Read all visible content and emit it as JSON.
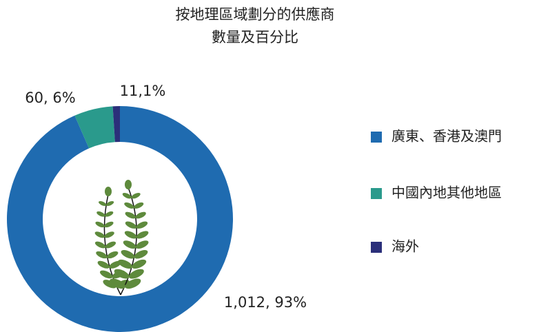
{
  "chart_data": {
    "type": "donut",
    "title": [
      "按地理區域劃分的供應商",
      "數量及百分比"
    ],
    "categories": [
      "廣東、香港及澳門",
      "中國內地其他地區",
      "海外"
    ],
    "values": [
      1012,
      60,
      11
    ],
    "value_labels": [
      "1,012, 93%",
      "60, 6%",
      "11,1%"
    ],
    "colors": [
      "#1f6bb0",
      "#2a9a8c",
      "#2b2f7a"
    ],
    "legend": "right"
  }
}
